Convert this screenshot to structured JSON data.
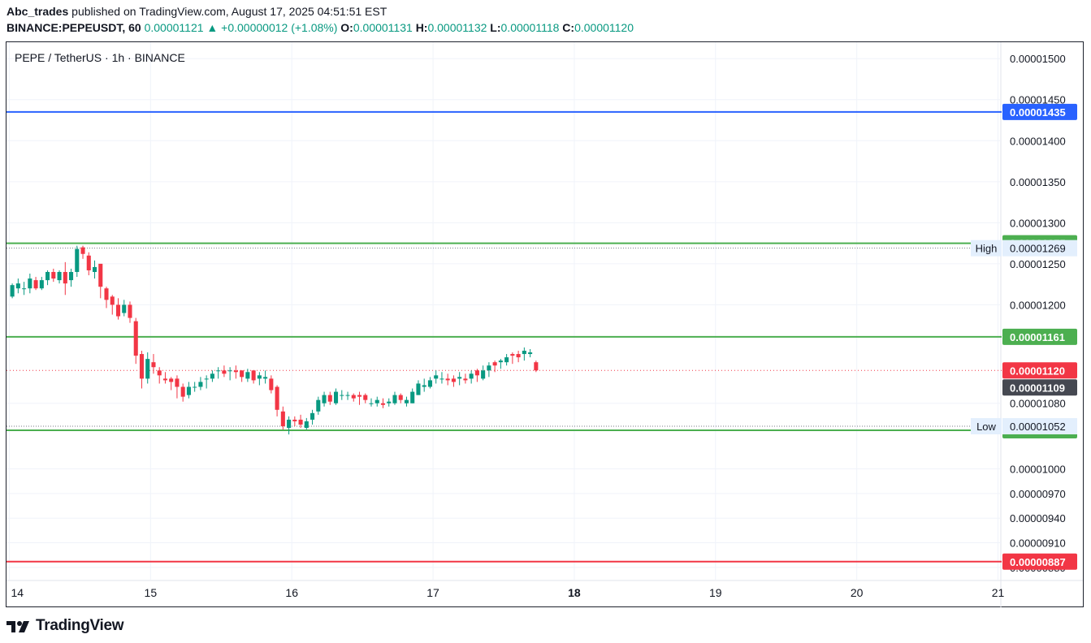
{
  "header": {
    "author": "Abc_trades",
    "published_text": "published on TradingView.com, August 17, 2025 04:51:51 EST",
    "symbol": "BINANCE:PEPEUSDT, 60",
    "last": "0.00001121",
    "change_arrow": "▲",
    "change": "+0.00000012 (+1.08%)",
    "o_label": "O:",
    "o_value": "0.00001131",
    "h_label": "H:",
    "h_value": "0.00001132",
    "l_label": "L:",
    "l_value": "0.00001118",
    "c_label": "C:",
    "c_value": "0.00001120"
  },
  "chart_title": "PEPE / TetherUS · 1h · BINANCE",
  "footer": {
    "logo_text": "TradingView",
    "logo_icon": "tradingview-logo-icon"
  },
  "colors": {
    "up": "#089981",
    "down": "#f23645",
    "blue_line": "#2962ff",
    "green_line": "#4caf50",
    "red_line": "#f23645",
    "grid": "#f0f3fa"
  },
  "chart_data": {
    "type": "candlestick",
    "title": "PEPE / TetherUS · 1h · BINANCE",
    "ylim": [
      8.65e-06,
      1.52e-05
    ],
    "y_ticks": [
      "0.00001500",
      "0.00001450",
      "0.00001400",
      "0.00001350",
      "0.00001300",
      "0.00001250",
      "0.00001200",
      "0.00001080",
      "0.00001000",
      "0.00000970",
      "0.00000940",
      "0.00000910",
      "0.00000880"
    ],
    "y_tick_values": [
      1.5e-05,
      1.45e-05,
      1.4e-05,
      1.35e-05,
      1.3e-05,
      1.25e-05,
      1.2e-05,
      1.08e-05,
      1e-05,
      9.7e-06,
      9.4e-06,
      9.1e-06,
      8.8e-06
    ],
    "x_ticks": [
      {
        "label": "14",
        "day": 14.0,
        "bold": false
      },
      {
        "label": "15",
        "day": 15.0,
        "bold": false
      },
      {
        "label": "16",
        "day": 16.0,
        "bold": false
      },
      {
        "label": "17",
        "day": 17.0,
        "bold": false
      },
      {
        "label": "18",
        "day": 18.0,
        "bold": true
      },
      {
        "label": "19",
        "day": 19.0,
        "bold": false
      },
      {
        "label": "20",
        "day": 20.0,
        "bold": false
      },
      {
        "label": "21",
        "day": 21.0,
        "bold": false
      }
    ],
    "x_range_days": [
      13.98,
      21.02
    ],
    "horizontal_lines": [
      {
        "value": 1.435e-05,
        "label": "0.00001435",
        "color": "#2962ff"
      },
      {
        "value": 1.275e-05,
        "label": "0.00001275",
        "color": "#4caf50"
      },
      {
        "value": 1.161e-05,
        "label": "0.00001161",
        "color": "#4caf50"
      },
      {
        "value": 1.047e-05,
        "label": "0.00001047",
        "color": "#4caf50"
      },
      {
        "value": 8.87e-06,
        "label": "0.00000887",
        "color": "#f23645"
      }
    ],
    "markers": [
      {
        "name": "High",
        "value": 1.269e-05,
        "label": "0.00001269"
      },
      {
        "name": "Low",
        "value": 1.052e-05,
        "label": "0.00001052"
      }
    ],
    "price_tags": [
      {
        "value": 1.12e-05,
        "label": "0.00001120",
        "color": "#f23645"
      },
      {
        "value": 1.109e-05,
        "label": "0.00001109",
        "color": "#454851"
      }
    ],
    "candle_start_day": 14.0,
    "candle_interval_hours": 1,
    "ohlc": [
      [
        1.21e-05,
        1.226e-05,
        1.208e-05,
        1.224e-05
      ],
      [
        1.22e-05,
        1.232e-05,
        1.214e-05,
        1.226e-05
      ],
      [
        1.22e-05,
        1.228e-05,
        1.212e-05,
        1.22e-05
      ],
      [
        1.22e-05,
        1.238e-05,
        1.214e-05,
        1.232e-05
      ],
      [
        1.23e-05,
        1.234e-05,
        1.218e-05,
        1.22e-05
      ],
      [
        1.22e-05,
        1.234e-05,
        1.218e-05,
        1.23e-05
      ],
      [
        1.23e-05,
        1.242e-05,
        1.224e-05,
        1.24e-05
      ],
      [
        1.24e-05,
        1.244e-05,
        1.228e-05,
        1.232e-05
      ],
      [
        1.23e-05,
        1.242e-05,
        1.226e-05,
        1.24e-05
      ],
      [
        1.24e-05,
        1.252e-05,
        1.212e-05,
        1.226e-05
      ],
      [
        1.23e-05,
        1.244e-05,
        1.222e-05,
        1.24e-05
      ],
      [
        1.24e-05,
        1.272e-05,
        1.234e-05,
        1.268e-05
      ],
      [
        1.27e-05,
        1.272e-05,
        1.256e-05,
        1.262e-05
      ],
      [
        1.26e-05,
        1.264e-05,
        1.236e-05,
        1.242e-05
      ],
      [
        1.24e-05,
        1.254e-05,
        1.232e-05,
        1.246e-05
      ],
      [
        1.25e-05,
        1.248e-05,
        1.208e-05,
        1.222e-05
      ],
      [
        1.22e-05,
        1.222e-05,
        1.196e-05,
        1.206e-05
      ],
      [
        1.21e-05,
        1.212e-05,
        1.188e-05,
        1.2e-05
      ],
      [
        1.2e-05,
        1.208e-05,
        1.182e-05,
        1.186e-05
      ],
      [
        1.19e-05,
        1.206e-05,
        1.186e-05,
        1.2e-05
      ],
      [
        1.2e-05,
        1.204e-05,
        1.178e-05,
        1.184e-05
      ],
      [
        1.18e-05,
        1.184e-05,
        1.128e-05,
        1.138e-05
      ],
      [
        1.14e-05,
        1.144e-05,
        1.098e-05,
        1.11e-05
      ],
      [
        1.11e-05,
        1.142e-05,
        1.104e-05,
        1.134e-05
      ],
      [
        1.13e-05,
        1.14e-05,
        1.116e-05,
        1.124e-05
      ],
      [
        1.12e-05,
        1.124e-05,
        1.104e-05,
        1.114e-05
      ],
      [
        1.11e-05,
        1.118e-05,
        1.104e-05,
        1.108e-05
      ],
      [
        1.11e-05,
        1.112e-05,
        1.096e-05,
        1.106e-05
      ],
      [
        1.11e-05,
        1.114e-05,
        1.086e-05,
        1.1e-05
      ],
      [
        1.1e-05,
        1.104e-05,
        1.082e-05,
        1.088e-05
      ],
      [
        1.09e-05,
        1.106e-05,
        1.086e-05,
        1.1e-05
      ],
      [
        1.1e-05,
        1.106e-05,
        1.094e-05,
        1.1e-05
      ],
      [
        1.1e-05,
        1.112e-05,
        1.096e-05,
        1.106e-05
      ],
      [
        1.11e-05,
        1.114e-05,
        1.098e-05,
        1.11e-05
      ],
      [
        1.11e-05,
        1.12e-05,
        1.106e-05,
        1.116e-05
      ],
      [
        1.12e-05,
        1.124e-05,
        1.11e-05,
        1.12e-05
      ],
      [
        1.12e-05,
        1.126e-05,
        1.112e-05,
        1.116e-05
      ],
      [
        1.12e-05,
        1.124e-05,
        1.108e-05,
        1.12e-05
      ],
      [
        1.12e-05,
        1.126e-05,
        1.11e-05,
        1.118e-05
      ],
      [
        1.12e-05,
        1.12e-05,
        1.106e-05,
        1.112e-05
      ],
      [
        1.11e-05,
        1.122e-05,
        1.106e-05,
        1.118e-05
      ],
      [
        1.12e-05,
        1.12e-05,
        1.104e-05,
        1.108e-05
      ],
      [
        1.11e-05,
        1.118e-05,
        1.102e-05,
        1.114e-05
      ],
      [
        1.11e-05,
        1.12e-05,
        1.104e-05,
        1.112e-05
      ],
      [
        1.11e-05,
        1.114e-05,
        1.092e-05,
        1.096e-05
      ],
      [
        1.1e-05,
        1.102e-05,
        1.064e-05,
        1.072e-05
      ],
      [
        1.07e-05,
        1.076e-05,
        1.048e-05,
        1.052e-05
      ],
      [
        1.05e-05,
        1.064e-05,
        1.042e-05,
        1.06e-05
      ],
      [
        1.06e-05,
        1.064e-05,
        1.052e-05,
        1.058e-05
      ],
      [
        1.06e-05,
        1.066e-05,
        1.05e-05,
        1.054e-05
      ],
      [
        1.05e-05,
        1.062e-05,
        1.048e-05,
        1.058e-05
      ],
      [
        1.06e-05,
        1.072e-05,
        1.054e-05,
        1.068e-05
      ],
      [
        1.07e-05,
        1.088e-05,
        1.066e-05,
        1.084e-05
      ],
      [
        1.08e-05,
        1.094e-05,
        1.076e-05,
        1.09e-05
      ],
      [
        1.09e-05,
        1.094e-05,
        1.078e-05,
        1.082e-05
      ],
      [
        1.08e-05,
        1.098e-05,
        1.078e-05,
        1.094e-05
      ],
      [
        1.09e-05,
        1.096e-05,
        1.084e-05,
        1.09e-05
      ],
      [
        1.09e-05,
        1.094e-05,
        1.084e-05,
        1.09e-05
      ],
      [
        1.09e-05,
        1.092e-05,
        1.082e-05,
        1.086e-05
      ],
      [
        1.09e-05,
        1.094e-05,
        1.078e-05,
        1.088e-05
      ],
      [
        1.09e-05,
        1.092e-05,
        1.08e-05,
        1.084e-05
      ],
      [
        1.08e-05,
        1.086e-05,
        1.076e-05,
        1.08e-05
      ],
      [
        1.08e-05,
        1.088e-05,
        1.076e-05,
        1.084e-05
      ],
      [
        1.08e-05,
        1.086e-05,
        1.074e-05,
        1.078e-05
      ],
      [
        1.08e-05,
        1.086e-05,
        1.076e-05,
        1.082e-05
      ],
      [
        1.08e-05,
        1.094e-05,
        1.078e-05,
        1.09e-05
      ],
      [
        1.09e-05,
        1.092e-05,
        1.08e-05,
        1.084e-05
      ],
      [
        1.08e-05,
        1.088e-05,
        1.076e-05,
        1.084e-05
      ],
      [
        1.08e-05,
        1.098e-05,
        1.08e-05,
        1.094e-05
      ],
      [
        1.09e-05,
        1.108e-05,
        1.09e-05,
        1.104e-05
      ],
      [
        1.1e-05,
        1.11e-05,
        1.094e-05,
        1.102e-05
      ],
      [
        1.1e-05,
        1.112e-05,
        1.098e-05,
        1.108e-05
      ],
      [
        1.11e-05,
        1.12e-05,
        1.104e-05,
        1.114e-05
      ],
      [
        1.11e-05,
        1.118e-05,
        1.104e-05,
        1.11e-05
      ],
      [
        1.11e-05,
        1.116e-05,
        1.102e-05,
        1.108e-05
      ],
      [
        1.11e-05,
        1.114e-05,
        1.1e-05,
        1.106e-05
      ],
      [
        1.11e-05,
        1.118e-05,
        1.102e-05,
        1.112e-05
      ],
      [
        1.11e-05,
        1.116e-05,
        1.104e-05,
        1.108e-05
      ],
      [
        1.11e-05,
        1.12e-05,
        1.104e-05,
        1.116e-05
      ],
      [
        1.12e-05,
        1.122e-05,
        1.106e-05,
        1.114e-05
      ],
      [
        1.11e-05,
        1.126e-05,
        1.108e-05,
        1.12e-05
      ],
      [
        1.12e-05,
        1.13e-05,
        1.112e-05,
        1.126e-05
      ],
      [
        1.13e-05,
        1.132e-05,
        1.118e-05,
        1.126e-05
      ],
      [
        1.13e-05,
        1.134e-05,
        1.122e-05,
        1.132e-05
      ],
      [
        1.13e-05,
        1.14e-05,
        1.126e-05,
        1.136e-05
      ],
      [
        1.14e-05,
        1.142e-05,
        1.128e-05,
        1.138e-05
      ],
      [
        1.14e-05,
        1.144e-05,
        1.13e-05,
        1.136e-05
      ],
      [
        1.14e-05,
        1.148e-05,
        1.132e-05,
        1.144e-05
      ],
      [
        1.14e-05,
        1.146e-05,
        1.136e-05,
        1.142e-05
      ],
      [
        1.13e-05,
        1.132e-05,
        1.118e-05,
        1.12e-05
      ]
    ]
  }
}
